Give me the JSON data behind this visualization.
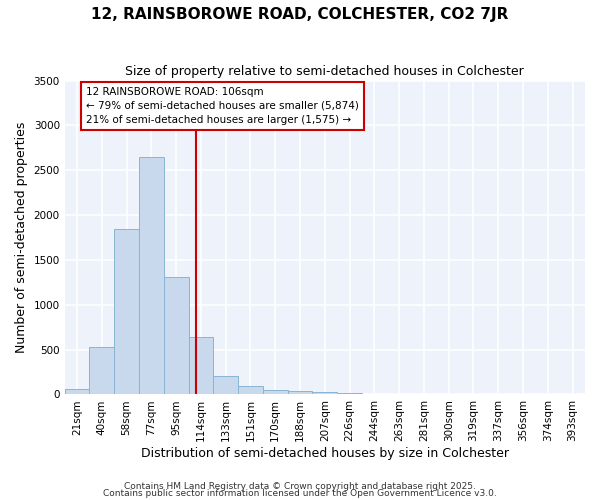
{
  "title": "12, RAINSBOROWE ROAD, COLCHESTER, CO2 7JR",
  "subtitle": "Size of property relative to semi-detached houses in Colchester",
  "xlabel": "Distribution of semi-detached houses by size in Colchester",
  "ylabel": "Number of semi-detached properties",
  "bar_labels": [
    "21sqm",
    "40sqm",
    "58sqm",
    "77sqm",
    "95sqm",
    "114sqm",
    "133sqm",
    "151sqm",
    "170sqm",
    "188sqm",
    "207sqm",
    "226sqm",
    "244sqm",
    "263sqm",
    "281sqm",
    "300sqm",
    "319sqm",
    "337sqm",
    "356sqm",
    "374sqm",
    "393sqm"
  ],
  "bar_values": [
    60,
    530,
    1840,
    2650,
    1310,
    640,
    210,
    90,
    50,
    40,
    30,
    20,
    10,
    0,
    0,
    0,
    0,
    0,
    0,
    0,
    0
  ],
  "bar_color": "#c9d9ed",
  "bar_edge_color": "#8ab4d4",
  "vline_x": 4.82,
  "vline_color": "#cc0000",
  "ylim": [
    0,
    3500
  ],
  "yticks": [
    0,
    500,
    1000,
    1500,
    2000,
    2500,
    3000,
    3500
  ],
  "annotation_text": "12 RAINSBOROWE ROAD: 106sqm\n← 79% of semi-detached houses are smaller (5,874)\n21% of semi-detached houses are larger (1,575) →",
  "annotation_box_facecolor": "#ffffff",
  "annotation_box_edgecolor": "#cc0000",
  "footer1": "Contains HM Land Registry data © Crown copyright and database right 2025.",
  "footer2": "Contains public sector information licensed under the Open Government Licence v3.0.",
  "fig_facecolor": "#ffffff",
  "plot_facecolor": "#edf2fb",
  "grid_color": "#ffffff",
  "title_fontsize": 11,
  "subtitle_fontsize": 9,
  "axis_label_fontsize": 9,
  "tick_fontsize": 7.5
}
